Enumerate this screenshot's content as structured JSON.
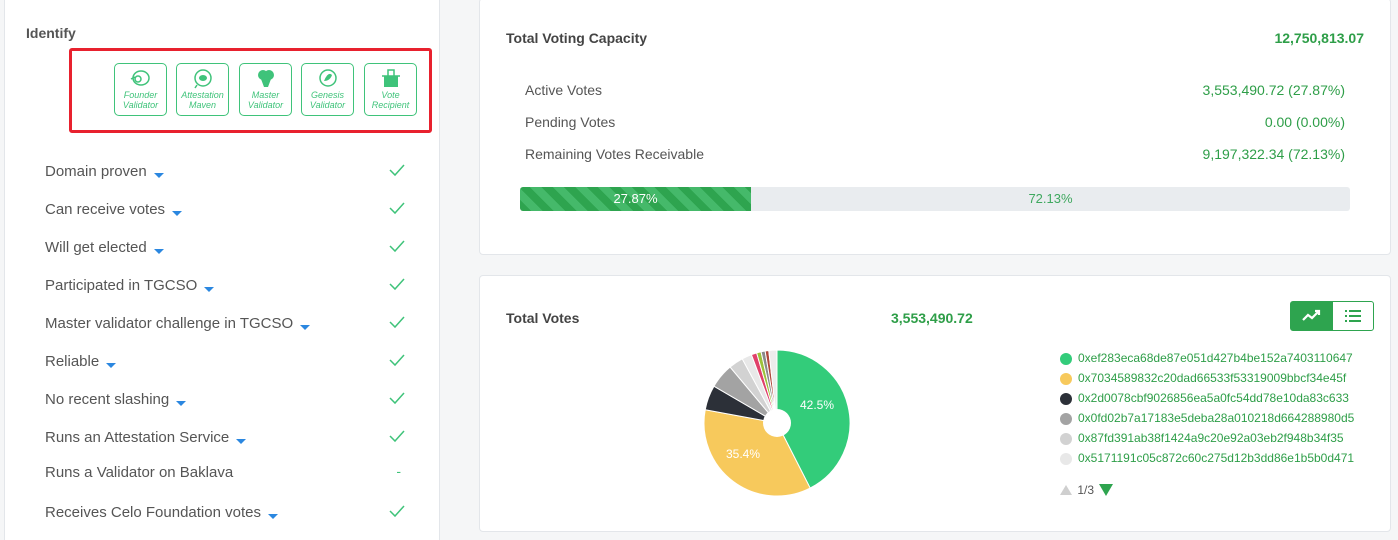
{
  "identify": {
    "title": "Identify",
    "badges": [
      {
        "label": "Founder Validator",
        "icon": "founder-icon"
      },
      {
        "label": "Attestation Maven",
        "icon": "attestation-icon"
      },
      {
        "label": "Master Validator",
        "icon": "master-icon"
      },
      {
        "label": "Genesis Validator",
        "icon": "genesis-icon"
      },
      {
        "label": "Vote Recipient",
        "icon": "vote-recipient-icon"
      }
    ],
    "checks": [
      {
        "label": "Domain proven",
        "dropdown": true,
        "status": "check"
      },
      {
        "label": "Can receive votes",
        "dropdown": true,
        "status": "check"
      },
      {
        "label": "Will get elected",
        "dropdown": true,
        "status": "check"
      },
      {
        "label": "Participated in TGCSO",
        "dropdown": true,
        "status": "check"
      },
      {
        "label": "Master validator challenge in TGCSO",
        "dropdown": true,
        "status": "check"
      },
      {
        "label": "Reliable",
        "dropdown": true,
        "status": "check"
      },
      {
        "label": "No recent slashing",
        "dropdown": true,
        "status": "check"
      },
      {
        "label": "Runs an Attestation Service",
        "dropdown": true,
        "status": "check"
      },
      {
        "label": "Runs a Validator on Baklava",
        "dropdown": false,
        "status": "-"
      },
      {
        "label": "Receives Celo Foundation votes",
        "dropdown": true,
        "status": "check"
      }
    ]
  },
  "capacity": {
    "title": "Total Voting Capacity",
    "total": "12,750,813.07",
    "rows": [
      {
        "label": "Active Votes",
        "value": "3,553,490.72 (27.87%)"
      },
      {
        "label": "Pending Votes",
        "value": "0.00 (0.00%)"
      },
      {
        "label": "Remaining Votes Receivable",
        "value": "9,197,322.34 (72.13%)"
      }
    ],
    "progress_active_pct": 27.87,
    "progress_active_label": "27.87%",
    "progress_rest_label": "72.13%"
  },
  "total_votes": {
    "title": "Total Votes",
    "value": "3,553,490.72",
    "pie_labels": [
      "42.5%",
      "35.4%"
    ],
    "legend": [
      {
        "address": "0xef283eca68de87e051d427b4be152a7403110647",
        "color": "#33cc7a"
      },
      {
        "address": "0x7034589832c20dad66533f53319009bbcf34e45f",
        "color": "#f7c95c"
      },
      {
        "address": "0x2d0078cbf9026856ea5a0fc54dd78e10da83c633",
        "color": "#2c3038"
      },
      {
        "address": "0x0fd02b7a17183e5deba28a010218d664288980d5",
        "color": "#a3a3a3"
      },
      {
        "address": "0x87fd391ab38f1424a9c20e92a03eb2f948b34f35",
        "color": "#d2d2d2"
      },
      {
        "address": "0x5171191c05c872c60c275d12b3dd86e1b5b0d471",
        "color": "#e8e8e8"
      }
    ],
    "pager": "1/3"
  }
}
